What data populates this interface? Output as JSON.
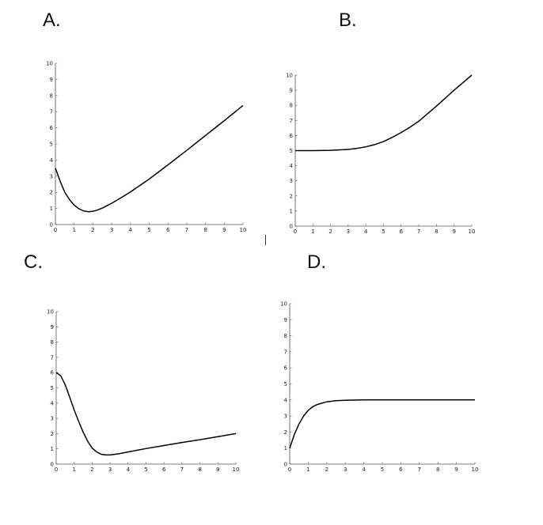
{
  "panels": [
    {
      "label": "A."
    },
    {
      "label": "B."
    },
    {
      "label": "C."
    },
    {
      "label": "D."
    }
  ],
  "chart_data": [
    {
      "type": "line",
      "title": "",
      "xlabel": "",
      "ylabel": "",
      "xlim": [
        0,
        10
      ],
      "ylim": [
        0,
        10
      ],
      "xticks": [
        0,
        1,
        2,
        3,
        4,
        5,
        6,
        7,
        8,
        9,
        10
      ],
      "yticks": [
        0,
        1,
        2,
        3,
        4,
        5,
        6,
        7,
        8,
        9,
        10
      ],
      "grid": false,
      "series": [
        {
          "color": "#000000",
          "x": [
            0,
            0.25,
            0.5,
            0.75,
            1,
            1.25,
            1.5,
            1.75,
            2,
            2.25,
            2.5,
            3,
            3.5,
            4,
            5,
            6,
            7,
            8,
            9,
            10
          ],
          "y": [
            3.5,
            2.7,
            2.0,
            1.55,
            1.2,
            0.98,
            0.85,
            0.8,
            0.82,
            0.9,
            1.02,
            1.32,
            1.66,
            2.02,
            2.82,
            3.7,
            4.6,
            5.52,
            6.44,
            7.38
          ]
        }
      ]
    },
    {
      "type": "line",
      "title": "",
      "xlabel": "",
      "ylabel": "",
      "xlim": [
        0,
        10
      ],
      "ylim": [
        0,
        10
      ],
      "xticks": [
        0,
        1,
        2,
        3,
        4,
        5,
        6,
        7,
        8,
        9,
        10
      ],
      "yticks": [
        0,
        1,
        2,
        3,
        4,
        5,
        6,
        7,
        8,
        9,
        10
      ],
      "grid": false,
      "series": [
        {
          "color": "#000000",
          "x": [
            0,
            1,
            2,
            3,
            3.5,
            4,
            4.5,
            5,
            5.5,
            6,
            6.5,
            7,
            8,
            9,
            10
          ],
          "y": [
            5.0,
            5.0,
            5.02,
            5.08,
            5.15,
            5.25,
            5.4,
            5.6,
            5.88,
            6.2,
            6.55,
            6.95,
            7.95,
            9.0,
            10.0
          ]
        }
      ]
    },
    {
      "type": "line",
      "title": "",
      "xlabel": "",
      "ylabel": "",
      "xlim": [
        0,
        10
      ],
      "ylim": [
        0,
        10
      ],
      "xticks": [
        0,
        1,
        2,
        3,
        4,
        5,
        6,
        7,
        8,
        9,
        10
      ],
      "yticks": [
        0,
        1,
        2,
        3,
        4,
        5,
        6,
        7,
        8,
        9,
        10
      ],
      "grid": false,
      "series": [
        {
          "color": "#000000",
          "x": [
            0,
            0.25,
            0.5,
            0.75,
            1,
            1.25,
            1.5,
            1.75,
            2,
            2.25,
            2.5,
            2.75,
            3,
            3.5,
            4,
            5,
            6,
            7,
            8,
            9,
            10
          ],
          "y": [
            6.0,
            5.8,
            5.2,
            4.4,
            3.55,
            2.8,
            2.1,
            1.5,
            1.05,
            0.8,
            0.65,
            0.6,
            0.6,
            0.68,
            0.8,
            1.02,
            1.22,
            1.42,
            1.6,
            1.8,
            2.0
          ]
        }
      ]
    },
    {
      "type": "line",
      "title": "",
      "xlabel": "",
      "ylabel": "",
      "xlim": [
        0,
        10
      ],
      "ylim": [
        0,
        10
      ],
      "xticks": [
        0,
        1,
        2,
        3,
        4,
        5,
        6,
        7,
        8,
        9,
        10
      ],
      "yticks": [
        0,
        1,
        2,
        3,
        4,
        5,
        6,
        7,
        8,
        9,
        10
      ],
      "grid": false,
      "series": [
        {
          "color": "#000000",
          "x": [
            0,
            0.25,
            0.5,
            0.75,
            1,
            1.25,
            1.5,
            2,
            2.5,
            3,
            3.5,
            4,
            5,
            6,
            7,
            8,
            9,
            10
          ],
          "y": [
            1.0,
            1.85,
            2.5,
            3.0,
            3.35,
            3.58,
            3.72,
            3.88,
            3.95,
            3.98,
            3.99,
            4.0,
            4.0,
            4.0,
            4.0,
            4.0,
            4.0,
            4.0
          ]
        }
      ]
    }
  ]
}
